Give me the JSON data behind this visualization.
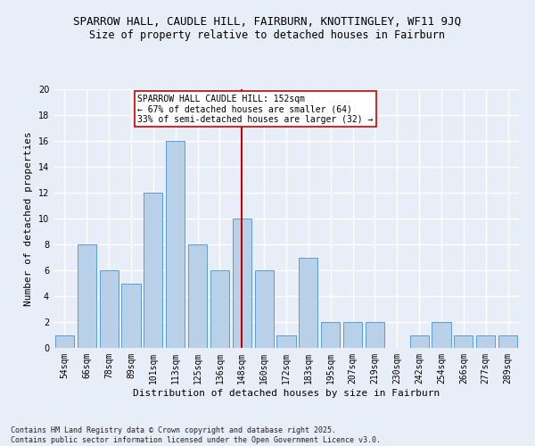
{
  "title": "SPARROW HALL, CAUDLE HILL, FAIRBURN, KNOTTINGLEY, WF11 9JQ",
  "subtitle": "Size of property relative to detached houses in Fairburn",
  "xlabel": "Distribution of detached houses by size in Fairburn",
  "ylabel": "Number of detached properties",
  "categories": [
    "54sqm",
    "66sqm",
    "78sqm",
    "89sqm",
    "101sqm",
    "113sqm",
    "125sqm",
    "136sqm",
    "148sqm",
    "160sqm",
    "172sqm",
    "183sqm",
    "195sqm",
    "207sqm",
    "219sqm",
    "230sqm",
    "242sqm",
    "254sqm",
    "266sqm",
    "277sqm",
    "289sqm"
  ],
  "values": [
    1,
    8,
    6,
    5,
    12,
    16,
    8,
    6,
    10,
    6,
    1,
    7,
    2,
    2,
    2,
    0,
    1,
    2,
    1,
    1,
    1
  ],
  "bar_color": "#b8d0e8",
  "bar_edge_color": "#5b9bd5",
  "vline_x_index": 8,
  "vline_color": "#cc0000",
  "annotation_text": "SPARROW HALL CAUDLE HILL: 152sqm\n← 67% of detached houses are smaller (64)\n33% of semi-detached houses are larger (32) →",
  "annotation_box_color": "#ffffff",
  "annotation_box_edge": "#cc0000",
  "ylim": [
    0,
    20
  ],
  "yticks": [
    0,
    2,
    4,
    6,
    8,
    10,
    12,
    14,
    16,
    18,
    20
  ],
  "footnote": "Contains HM Land Registry data © Crown copyright and database right 2025.\nContains public sector information licensed under the Open Government Licence v3.0.",
  "bg_color": "#e8eef7",
  "grid_color": "#ffffff",
  "title_fontsize": 9,
  "subtitle_fontsize": 8.5,
  "axis_label_fontsize": 8,
  "tick_fontsize": 7,
  "annotation_fontsize": 7,
  "footnote_fontsize": 6
}
